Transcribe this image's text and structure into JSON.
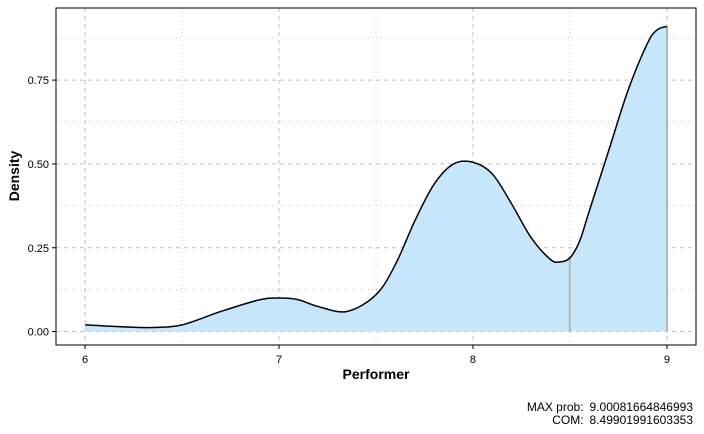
{
  "chart_data": {
    "type": "area",
    "xlabel": "Performer",
    "ylabel": "Density",
    "xlim": [
      5.85,
      9.15
    ],
    "ylim": [
      -0.04,
      0.965
    ],
    "x_ticks": [
      6,
      7,
      8,
      9
    ],
    "y_ticks": [
      0.0,
      0.25,
      0.5,
      0.75
    ],
    "x_tick_labels": [
      "6",
      "7",
      "8",
      "9"
    ],
    "y_tick_labels": [
      "0.00",
      "0.25",
      "0.50",
      "0.75"
    ],
    "grid": true,
    "fill_color": "#c6e6fb",
    "line_color": "#000000",
    "marker_color": "#b3b3b3",
    "series": [
      {
        "x": [
          6.0,
          6.2,
          6.35,
          6.5,
          6.7,
          6.9,
          7.0,
          7.1,
          7.2,
          7.35,
          7.5,
          7.6,
          7.7,
          7.8,
          7.9,
          8.0,
          8.1,
          8.2,
          8.3,
          8.4,
          8.45,
          8.5,
          8.55,
          8.6,
          8.7,
          8.8,
          8.9,
          8.95,
          9.0
        ],
        "y": [
          0.02,
          0.014,
          0.012,
          0.02,
          0.06,
          0.095,
          0.1,
          0.095,
          0.075,
          0.06,
          0.11,
          0.2,
          0.33,
          0.44,
          0.5,
          0.505,
          0.47,
          0.38,
          0.28,
          0.215,
          0.208,
          0.22,
          0.27,
          0.36,
          0.54,
          0.72,
          0.86,
          0.9,
          0.91
        ]
      }
    ],
    "markers": [
      {
        "x": 8.49901991603353
      },
      {
        "x": 9.00081664846993
      }
    ],
    "annotations": {
      "max_prob_label": "MAX prob:",
      "max_prob_value": "9.00081664846993",
      "com_label": "COM:",
      "com_value": "8.49901991603353"
    }
  }
}
